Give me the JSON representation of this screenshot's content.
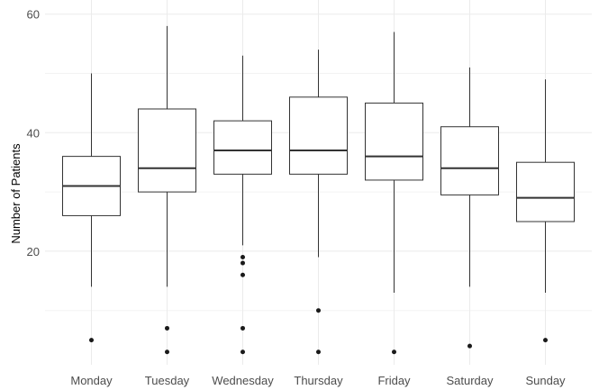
{
  "chart_data": {
    "type": "box",
    "title": "",
    "xlabel": "",
    "ylabel": "Number of Patients",
    "ylim": [
      2,
      61
    ],
    "yticks": [
      20,
      40,
      60
    ],
    "grid": true,
    "categories": [
      "Monday",
      "Tuesday",
      "Wednesday",
      "Thursday",
      "Friday",
      "Saturday",
      "Sunday"
    ],
    "boxes": [
      {
        "min": 14,
        "q1": 26,
        "median": 31,
        "q3": 36,
        "max": 50,
        "outliers": [
          5
        ]
      },
      {
        "min": 14,
        "q1": 30,
        "median": 34,
        "q3": 44,
        "max": 58,
        "outliers": [
          7,
          3
        ]
      },
      {
        "min": 21,
        "q1": 33,
        "median": 37,
        "q3": 42,
        "max": 53,
        "outliers": [
          19,
          18,
          16,
          7,
          3
        ]
      },
      {
        "min": 19,
        "q1": 33,
        "median": 37,
        "q3": 46,
        "max": 54,
        "outliers": [
          10,
          3
        ]
      },
      {
        "min": 13,
        "q1": 32,
        "median": 36,
        "q3": 45,
        "max": 57,
        "outliers": [
          3
        ]
      },
      {
        "min": 14,
        "q1": 29.5,
        "median": 34,
        "q3": 41,
        "max": 51,
        "outliers": [
          4
        ]
      },
      {
        "min": 13,
        "q1": 25,
        "median": 29,
        "q3": 35,
        "max": 49,
        "outliers": [
          5
        ]
      }
    ],
    "colors": {
      "box_stroke": "#333333",
      "box_fill": "#ffffff",
      "grid_major": "#ebebeb",
      "grid_minor": "#f3f3f3",
      "point": "#1a1a1a"
    }
  }
}
